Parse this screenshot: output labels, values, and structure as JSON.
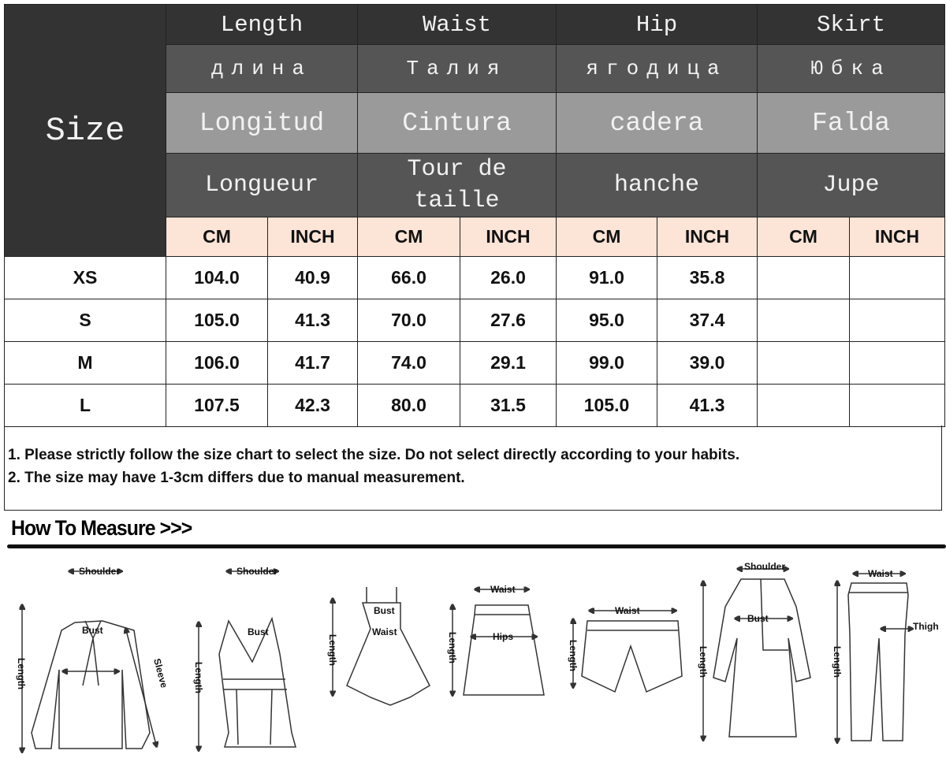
{
  "header": {
    "size": "Size",
    "columns": [
      {
        "en": "Length",
        "ru": "длина",
        "es": "Longitud",
        "fr": "Longueur"
      },
      {
        "en": "Waist",
        "ru": "Талия",
        "es": "Cintura",
        "fr": "Tour de taille"
      },
      {
        "en": "Hip",
        "ru": "ягодица",
        "es": "cadera",
        "fr": "hanche"
      },
      {
        "en": "Skirt",
        "ru": "Юбка",
        "es": "Falda",
        "fr": "Jupe"
      }
    ],
    "units": [
      "CM",
      "INCH",
      "CM",
      "INCH",
      "CM",
      "INCH",
      "CM",
      "INCH"
    ]
  },
  "rows": [
    {
      "size": "XS",
      "values": [
        "104.0",
        "40.9",
        "66.0",
        "26.0",
        "91.0",
        "35.8",
        "",
        ""
      ]
    },
    {
      "size": "S",
      "values": [
        "105.0",
        "41.3",
        "70.0",
        "27.6",
        "95.0",
        "37.4",
        "",
        ""
      ]
    },
    {
      "size": "M",
      "values": [
        "106.0",
        "41.7",
        "74.0",
        "29.1",
        "99.0",
        "39.0",
        "",
        ""
      ]
    },
    {
      "size": "L",
      "values": [
        "107.5",
        "42.3",
        "80.0",
        "31.5",
        "105.0",
        "41.3",
        "",
        ""
      ]
    }
  ],
  "notes": [
    "1. Please strictly follow the size chart to select the size. Do not select directly according to your habits.",
    "2. The size may have 1-3cm differs due to manual measurement."
  ],
  "how_to_measure": {
    "title": "How To Measure >>>",
    "labels": {
      "shoulder": "Shoulder",
      "bust": "Bust",
      "sleeve": "Sleeve",
      "length": "Length",
      "waist": "Waist",
      "hips": "Hips",
      "thigh": "Thigh"
    }
  }
}
